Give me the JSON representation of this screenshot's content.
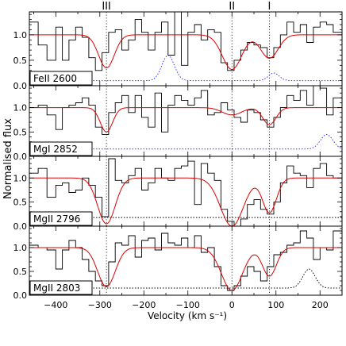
{
  "chart_data": {
    "type": "line",
    "xlabel": "Velocity (km s⁻¹)",
    "ylabel": "Normalised flux",
    "xlim": [
      -460,
      250
    ],
    "x_ticks": [
      -400,
      -300,
      -200,
      -100,
      0,
      100,
      200
    ],
    "x_tick_labels": [
      "−400",
      "−300",
      "−200",
      "−100",
      "0",
      "100",
      "200"
    ],
    "y_tick_labels": [
      "0.0",
      "0.5",
      "1.0"
    ],
    "components": [
      {
        "label": "III",
        "velocity": -285
      },
      {
        "label": "II",
        "velocity": 0
      },
      {
        "label": "I",
        "velocity": 85
      }
    ],
    "panels": [
      {
        "ion": "FeII 2600",
        "ylim": [
          0.0,
          1.45
        ],
        "error_color": "#3333ff",
        "error_level": 0.1,
        "bins_x": [
          -460,
          -440,
          -420,
          -400,
          -385,
          -370,
          -355,
          -340,
          -325,
          -310,
          -295,
          -280,
          -265,
          -250,
          -235,
          -220,
          -205,
          -190,
          -175,
          -160,
          -145,
          -130,
          -115,
          -100,
          -85,
          -70,
          -55,
          -40,
          -25,
          -10,
          5,
          20,
          35,
          50,
          65,
          80,
          95,
          110,
          125,
          140,
          155,
          170,
          185,
          200,
          215,
          230,
          250
        ],
        "flux": [
          1.25,
          0.8,
          0.5,
          1.15,
          0.5,
          0.9,
          1.15,
          0.95,
          0.55,
          0.3,
          0.65,
          1.05,
          1.1,
          0.7,
          0.9,
          1.3,
          1.05,
          0.7,
          1.05,
          1.25,
          0.6,
          1.45,
          0.4,
          1.05,
          1.2,
          0.9,
          1.1,
          1.05,
          0.45,
          0.3,
          0.5,
          0.7,
          0.85,
          0.8,
          0.75,
          0.55,
          0.75,
          1.0,
          1.25,
          1.05,
          1.2,
          0.85,
          1.15,
          1.25,
          1.2,
          1.05
        ],
        "model": [
          {
            "depth": 0.65,
            "center": -285,
            "width": 18
          },
          {
            "depth": 0.68,
            "center": 0,
            "width": 22
          },
          {
            "depth": 0.46,
            "center": 85,
            "width": 20
          }
        ],
        "error_bumps": [
          {
            "center": -145,
            "width": 14,
            "height": 0.5
          },
          {
            "center": 95,
            "width": 12,
            "height": 0.15
          }
        ]
      },
      {
        "ion": "MgI 2852",
        "ylim": [
          0.0,
          1.45
        ],
        "error_color": "#3333ff",
        "error_level": 0.15,
        "bins_x": [
          -460,
          -440,
          -420,
          -400,
          -385,
          -370,
          -355,
          -340,
          -325,
          -310,
          -295,
          -280,
          -265,
          -250,
          -235,
          -220,
          -205,
          -190,
          -175,
          -160,
          -145,
          -130,
          -115,
          -100,
          -85,
          -70,
          -55,
          -40,
          -25,
          -10,
          5,
          20,
          35,
          50,
          65,
          80,
          95,
          110,
          125,
          140,
          155,
          170,
          185,
          200,
          215,
          230,
          250
        ],
        "flux": [
          1.0,
          1.05,
          0.85,
          0.55,
          1.0,
          1.05,
          1.1,
          1.2,
          1.05,
          0.6,
          0.45,
          0.9,
          1.1,
          1.25,
          0.9,
          1.25,
          0.8,
          0.6,
          1.3,
          0.5,
          1.05,
          1.25,
          1.15,
          1.05,
          1.2,
          1.35,
          0.85,
          0.9,
          1.1,
          0.95,
          0.8,
          0.7,
          0.95,
          0.9,
          0.75,
          0.6,
          0.8,
          1.0,
          1.25,
          1.15,
          1.35,
          1.05,
          1.45,
          1.4,
          0.85,
          1.2
        ],
        "model": [
          {
            "depth": 0.5,
            "center": -285,
            "width": 14
          },
          {
            "depth": 0.15,
            "center": 0,
            "width": 22
          },
          {
            "depth": 0.35,
            "center": 85,
            "width": 15
          }
        ],
        "error_bumps": [
          {
            "center": 215,
            "width": 14,
            "height": 0.3
          }
        ]
      },
      {
        "ion": "MgII 2796",
        "ylim": [
          0.0,
          1.45
        ],
        "error_color": "#000000",
        "error_level": 0.18,
        "bins_x": [
          -460,
          -440,
          -420,
          -400,
          -385,
          -370,
          -355,
          -340,
          -325,
          -310,
          -295,
          -280,
          -265,
          -250,
          -235,
          -220,
          -205,
          -190,
          -175,
          -160,
          -145,
          -130,
          -115,
          -100,
          -85,
          -70,
          -55,
          -40,
          -25,
          -10,
          5,
          20,
          35,
          50,
          65,
          80,
          95,
          110,
          125,
          140,
          155,
          170,
          185,
          200,
          215,
          230,
          250
        ],
        "flux": [
          1.1,
          1.2,
          0.6,
          0.85,
          0.9,
          0.7,
          0.75,
          1.0,
          0.85,
          0.6,
          0.2,
          1.4,
          0.95,
          0.9,
          1.05,
          1.2,
          0.75,
          0.9,
          1.2,
          1.0,
          0.95,
          1.2,
          1.25,
          1.35,
          0.45,
          1.3,
          1.1,
          0.95,
          0.35,
          0.1,
          0.0,
          0.15,
          0.45,
          0.55,
          0.35,
          0.25,
          0.5,
          0.9,
          1.25,
          1.1,
          1.05,
          0.8,
          1.2,
          1.3,
          1.05,
          1.0
        ],
        "model": [
          {
            "depth": 0.95,
            "center": -285,
            "width": 20
          },
          {
            "depth": 1.0,
            "center": 0,
            "width": 26
          },
          {
            "depth": 0.72,
            "center": 85,
            "width": 16
          }
        ],
        "error_bumps": []
      },
      {
        "ion": "MgII 2803",
        "ylim": [
          0.0,
          1.45
        ],
        "error_color": "#000000",
        "error_level": 0.15,
        "bins_x": [
          -460,
          -440,
          -420,
          -400,
          -385,
          -370,
          -355,
          -340,
          -325,
          -310,
          -295,
          -280,
          -265,
          -250,
          -235,
          -220,
          -205,
          -190,
          -175,
          -160,
          -145,
          -130,
          -115,
          -100,
          -85,
          -70,
          -55,
          -40,
          -25,
          -10,
          5,
          20,
          35,
          50,
          65,
          80,
          95,
          110,
          125,
          140,
          155,
          170,
          185,
          200,
          215,
          230,
          250
        ],
        "flux": [
          1.05,
          1.0,
          0.95,
          0.55,
          0.95,
          1.15,
          1.0,
          0.75,
          0.5,
          0.3,
          0.2,
          0.7,
          1.1,
          1.05,
          1.25,
          0.8,
          1.15,
          1.2,
          0.95,
          1.3,
          1.1,
          1.05,
          1.2,
          1.0,
          1.25,
          0.9,
          1.0,
          0.6,
          0.2,
          0.1,
          0.2,
          0.4,
          0.6,
          0.5,
          0.3,
          0.6,
          0.85,
          0.9,
          1.05,
          1.1,
          1.35,
          1.2,
          0.75,
          1.0,
          0.95,
          1.35
        ],
        "model": [
          {
            "depth": 0.82,
            "center": -285,
            "width": 20
          },
          {
            "depth": 0.9,
            "center": 0,
            "width": 24
          },
          {
            "depth": 0.6,
            "center": 85,
            "width": 16
          }
        ],
        "error_bumps": [
          {
            "center": 175,
            "width": 14,
            "height": 0.4
          }
        ]
      }
    ]
  }
}
